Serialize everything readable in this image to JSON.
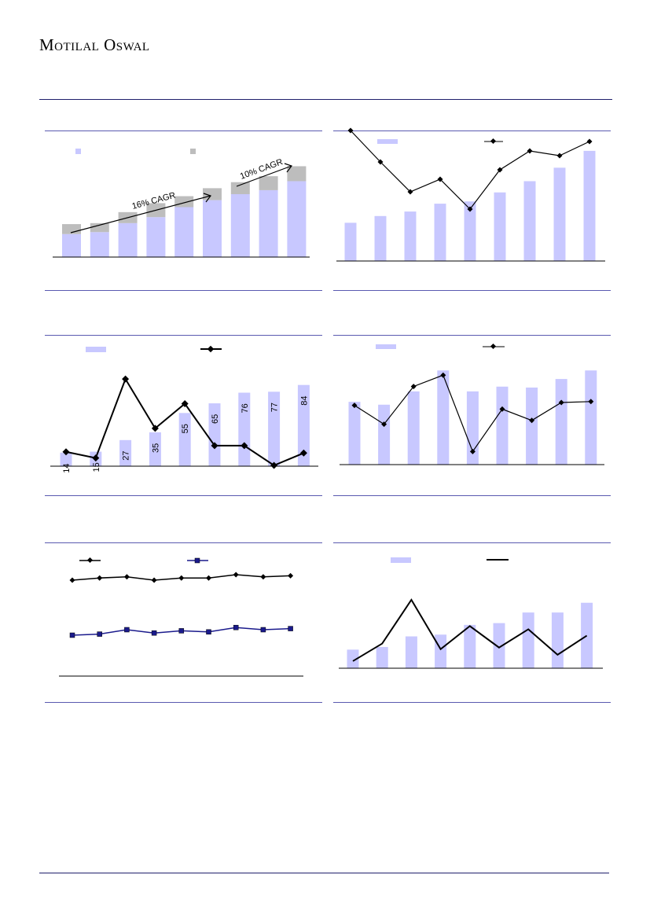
{
  "header": {
    "brand": "Motilal Oswal"
  },
  "colors": {
    "bar": "#c8c8ff",
    "bar_grey": "#bdbdbd",
    "line": "#000000",
    "line_navy": "#1a1a8c",
    "rule": "#5a5ab0"
  },
  "chart_data": [
    {
      "id": "chart1",
      "type": "bar",
      "stacked": true,
      "categories": [
        "",
        "",
        "",
        "",
        "",
        "",
        "",
        "",
        ""
      ],
      "series": [
        {
          "values": [
            23,
            25,
            34,
            40,
            50,
            57,
            63,
            67,
            76
          ]
        },
        {
          "values": [
            10,
            9,
            11,
            14,
            11,
            12,
            12,
            14,
            15
          ]
        }
      ],
      "ylim": [
        0,
        100
      ],
      "annotations": [
        "16% CAGR",
        "10% CAGR"
      ]
    },
    {
      "id": "chart2",
      "type": "bar",
      "categories": [
        "",
        "",
        "",
        "",
        "",
        "",
        "",
        "",
        ""
      ],
      "series": [
        {
          "type": "bar",
          "values": [
            34,
            40,
            44,
            51,
            53,
            61,
            71,
            83,
            98
          ]
        },
        {
          "type": "line",
          "values": [
            82,
            62,
            43,
            51,
            32,
            57,
            69,
            66,
            75
          ]
        }
      ],
      "ylim": [
        0,
        100
      ]
    },
    {
      "id": "chart3",
      "type": "bar",
      "categories": [
        "",
        "",
        "",
        "",
        "",
        "",
        "",
        "",
        ""
      ],
      "series": [
        {
          "type": "bar",
          "values": [
            14,
            15,
            27,
            35,
            55,
            65,
            76,
            77,
            84
          ]
        },
        {
          "type": "line",
          "values": [
            11,
            6,
            70,
            30,
            50,
            16,
            16,
            0,
            10
          ]
        }
      ],
      "data_labels": [
        "14",
        "15",
        "27",
        "35",
        "55",
        "65",
        "76",
        "77",
        "84"
      ],
      "ylim": [
        0,
        100
      ]
    },
    {
      "id": "chart4",
      "type": "bar",
      "categories": [
        "",
        "",
        "",
        "",
        "",
        "",
        "",
        "",
        ""
      ],
      "series": [
        {
          "type": "bar",
          "values": [
            66,
            63,
            77,
            99,
            77,
            82,
            81,
            90,
            99
          ]
        },
        {
          "type": "line",
          "values": [
            62,
            42,
            82,
            94,
            13,
            58,
            46,
            65,
            66
          ]
        }
      ],
      "ylim": [
        0,
        100
      ]
    },
    {
      "id": "chart5",
      "type": "line",
      "categories": [
        "",
        "",
        "",
        "",
        "",
        "",
        "",
        "",
        ""
      ],
      "series": [
        {
          "values": [
            80,
            82,
            83,
            80,
            82,
            82,
            85,
            83,
            84
          ]
        },
        {
          "values": [
            30,
            31,
            35,
            32,
            34,
            33,
            37,
            35,
            36
          ]
        }
      ],
      "ylim": [
        0,
        100
      ]
    },
    {
      "id": "chart6",
      "type": "bar",
      "categories": [
        "",
        "",
        "",
        "",
        "",
        "",
        "",
        "",
        ""
      ],
      "series": [
        {
          "type": "bar",
          "values": [
            21,
            24,
            36,
            38,
            49,
            51,
            63,
            63,
            74
          ]
        },
        {
          "type": "line",
          "values": [
            4,
            26,
            81,
            19,
            48,
            21,
            44,
            12,
            36
          ]
        }
      ],
      "ylim": [
        0,
        80
      ]
    }
  ]
}
